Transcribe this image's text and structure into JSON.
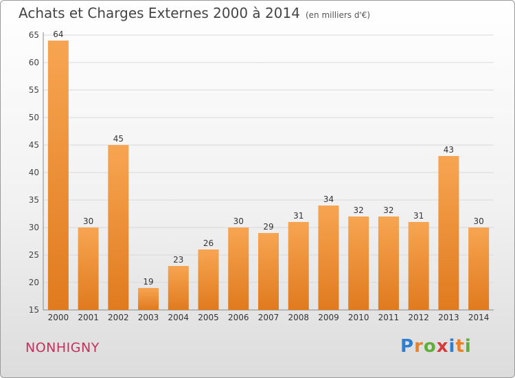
{
  "header": {
    "title": "Achats et Charges Externes 2000 à 2014",
    "subtitle": "(en milliers d'€)"
  },
  "footer": {
    "commune": "NONHIGNY",
    "logo": "Proxiti"
  },
  "colors": {
    "bar_light": "#f7a552",
    "bar_dark": "#e07a1e",
    "commune": "#c4305e"
  },
  "chart_data": {
    "type": "bar",
    "title": "Achats et Charges Externes 2000 à 2014",
    "subtitle": "(en milliers d'€)",
    "categories": [
      "2000",
      "2001",
      "2002",
      "2003",
      "2004",
      "2005",
      "2006",
      "2007",
      "2008",
      "2009",
      "2010",
      "2011",
      "2012",
      "2013",
      "2014"
    ],
    "values": [
      64,
      30,
      45,
      19,
      23,
      26,
      30,
      29,
      31,
      34,
      32,
      32,
      31,
      43,
      30
    ],
    "ylim": [
      15,
      65
    ],
    "yticks": [
      15,
      20,
      25,
      30,
      35,
      40,
      45,
      50,
      55,
      60,
      65
    ],
    "grid": true,
    "xlabel": "",
    "ylabel": ""
  }
}
